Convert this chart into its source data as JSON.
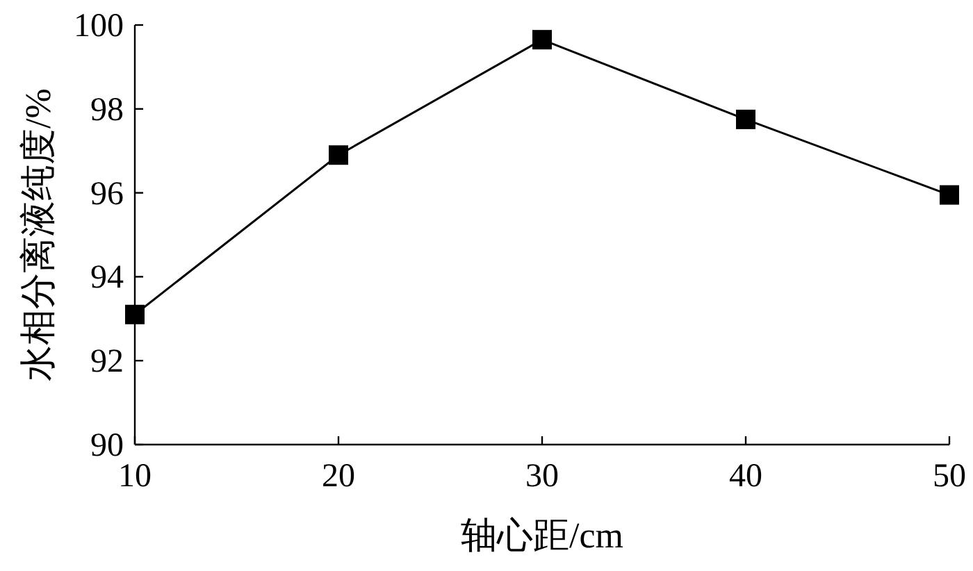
{
  "chart_data": {
    "type": "line",
    "xlabel": "轴心距/cm",
    "ylabel": "水相分离液纯度/%",
    "x": [
      10,
      20,
      30,
      40,
      50
    ],
    "series": [
      {
        "color": "#000000",
        "values": [
          93.1,
          96.9,
          99.65,
          97.75,
          95.95
        ]
      }
    ],
    "xlim": [
      10,
      50
    ],
    "xticks": [
      10,
      20,
      30,
      40,
      50
    ],
    "ylim": [
      90,
      100
    ],
    "yticks": [
      90,
      92,
      94,
      96,
      98,
      100
    ],
    "marker": "square",
    "line_style": "solid"
  }
}
